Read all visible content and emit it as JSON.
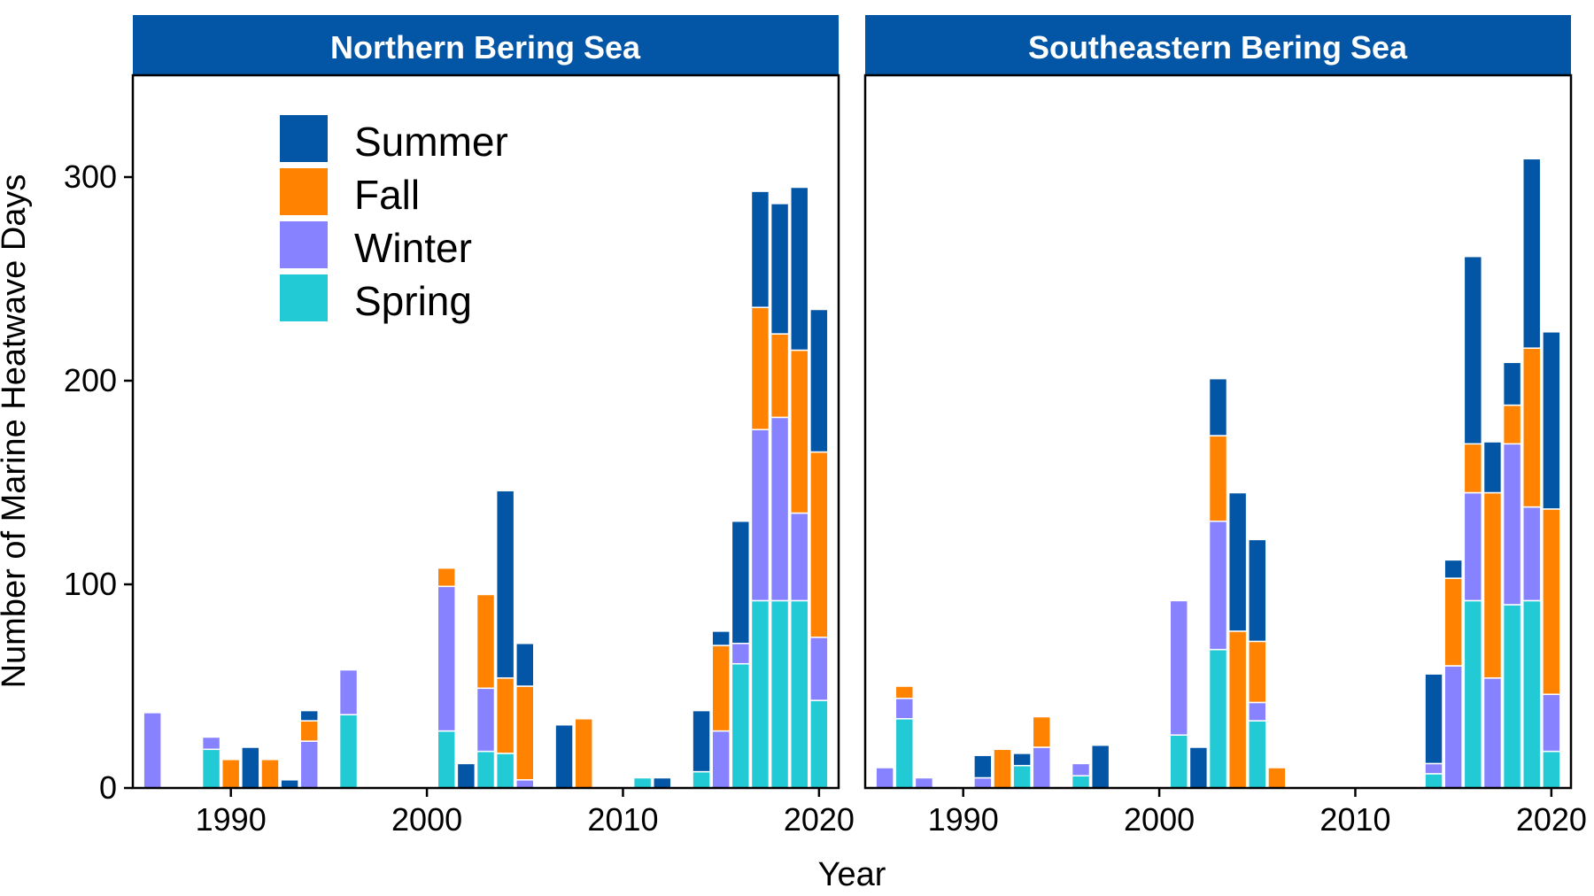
{
  "figure": {
    "ylabel": "Number of Marine Heatwave Days",
    "xlabel": "Year"
  },
  "colors": {
    "strip": "#0355A6",
    "Summer": "#0355A6",
    "Fall": "#FF8200",
    "Winter": "#8782FF",
    "Spring": "#21CAD4"
  },
  "legend": {
    "placement": "top-left inside first panel",
    "entries": [
      "Summer",
      "Fall",
      "Winter",
      "Spring"
    ]
  },
  "chart_data": [
    {
      "type": "bar",
      "stacked": true,
      "title": "Northern Bering Sea",
      "xlabel": "Year",
      "ylabel": "Number of Marine Heatwave Days",
      "xlim": [
        1985,
        2021
      ],
      "ylim": [
        0,
        350
      ],
      "xticks": [
        1990,
        2000,
        2010,
        2020
      ],
      "yticks": [
        0,
        100,
        200,
        300
      ],
      "x": [
        1986,
        1989,
        1990,
        1991,
        1992,
        1993,
        1994,
        1996,
        2001,
        2002,
        2003,
        2004,
        2005,
        2007,
        2008,
        2011,
        2012,
        2014,
        2015,
        2016,
        2017,
        2018,
        2019,
        2020
      ],
      "series": [
        {
          "name": "Spring",
          "values": [
            0,
            19,
            0,
            0,
            0,
            0,
            0,
            36,
            28,
            0,
            18,
            17,
            0,
            0,
            0,
            5,
            0,
            8,
            0,
            61,
            92,
            92,
            92,
            43
          ]
        },
        {
          "name": "Winter",
          "values": [
            37,
            6,
            0,
            0,
            0,
            0,
            23,
            22,
            71,
            0,
            31,
            0,
            4,
            0,
            0,
            0,
            0,
            0,
            28,
            10,
            84,
            90,
            43,
            31
          ]
        },
        {
          "name": "Fall",
          "values": [
            0,
            0,
            14,
            0,
            14,
            0,
            10,
            0,
            9,
            0,
            46,
            37,
            46,
            0,
            34,
            0,
            0,
            0,
            42,
            0,
            60,
            41,
            80,
            91
          ]
        },
        {
          "name": "Summer",
          "values": [
            0,
            0,
            0,
            20,
            0,
            4,
            5,
            0,
            0,
            12,
            0,
            92,
            21,
            31,
            0,
            0,
            5,
            30,
            7,
            60,
            57,
            64,
            80,
            70
          ]
        }
      ]
    },
    {
      "type": "bar",
      "stacked": true,
      "title": "Southeastern Bering Sea",
      "xlabel": "Year",
      "ylabel": "Number of Marine Heatwave Days",
      "xlim": [
        1985,
        2021
      ],
      "ylim": [
        0,
        350
      ],
      "xticks": [
        1990,
        2000,
        2010,
        2020
      ],
      "yticks": [
        0,
        100,
        200,
        300
      ],
      "x": [
        1986,
        1987,
        1988,
        1991,
        1992,
        1993,
        1994,
        1996,
        1997,
        2001,
        2002,
        2003,
        2004,
        2005,
        2006,
        2014,
        2015,
        2016,
        2017,
        2018,
        2019,
        2020
      ],
      "series": [
        {
          "name": "Spring",
          "values": [
            0,
            34,
            0,
            0,
            0,
            11,
            0,
            6,
            0,
            26,
            0,
            68,
            0,
            33,
            0,
            7,
            0,
            92,
            0,
            90,
            92,
            18
          ]
        },
        {
          "name": "Winter",
          "values": [
            10,
            10,
            5,
            5,
            0,
            0,
            20,
            6,
            0,
            66,
            0,
            63,
            0,
            9,
            0,
            5,
            60,
            53,
            54,
            79,
            46,
            28
          ]
        },
        {
          "name": "Fall",
          "values": [
            0,
            6,
            0,
            0,
            19,
            0,
            15,
            0,
            0,
            0,
            0,
            42,
            77,
            30,
            10,
            0,
            43,
            24,
            91,
            19,
            78,
            91
          ]
        },
        {
          "name": "Summer",
          "values": [
            0,
            0,
            0,
            11,
            0,
            6,
            0,
            0,
            21,
            0,
            20,
            28,
            68,
            50,
            0,
            44,
            9,
            92,
            25,
            21,
            93,
            87
          ]
        }
      ]
    }
  ]
}
